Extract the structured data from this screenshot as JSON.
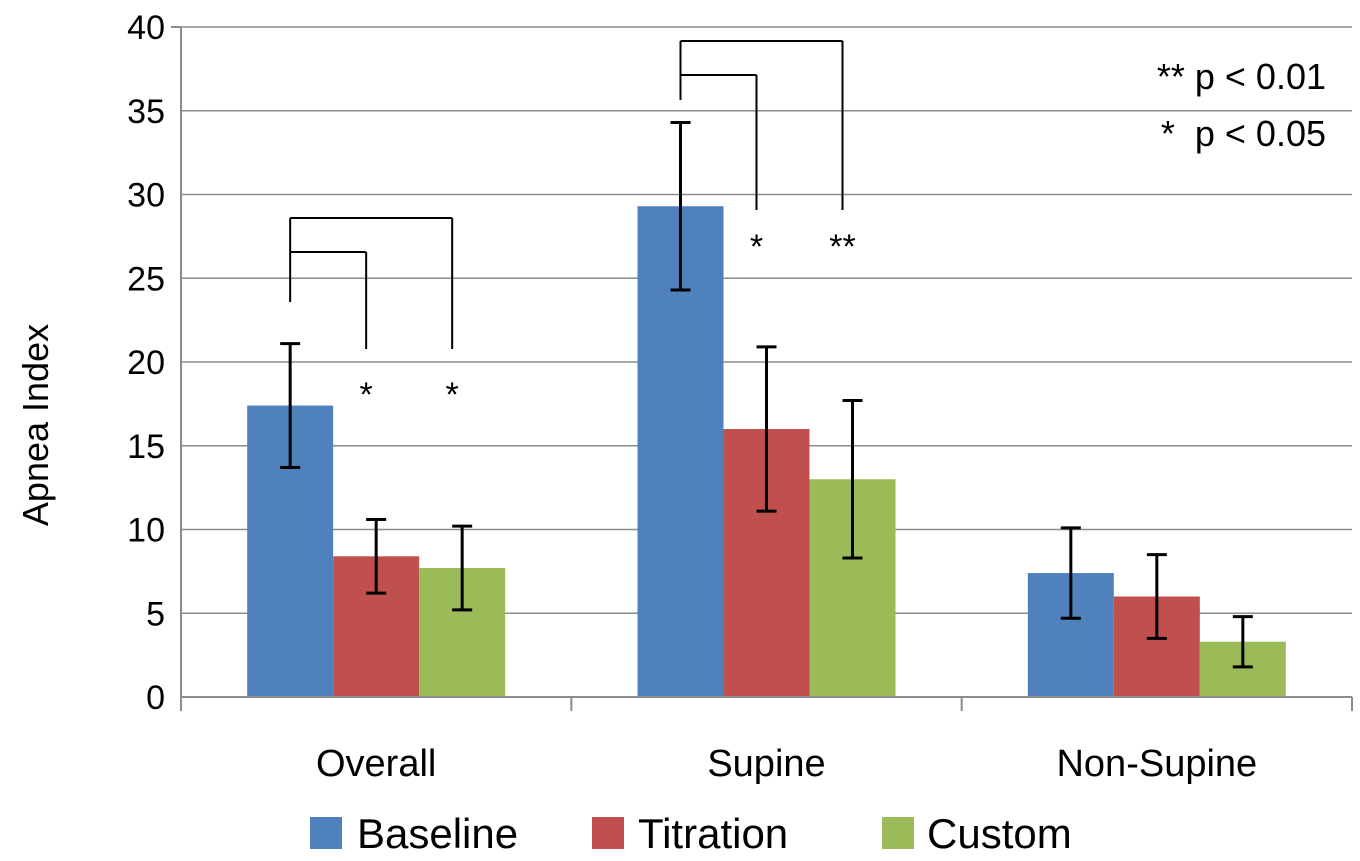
{
  "chart_data": {
    "type": "bar",
    "ylabel": "Apnea Index",
    "ylim": [
      0,
      40
    ],
    "yticks": [
      0,
      5,
      10,
      15,
      20,
      25,
      30,
      35,
      40
    ],
    "grid": true,
    "categories": [
      "Overall",
      "Supine",
      "Non-Supine"
    ],
    "series": [
      {
        "name": "Baseline",
        "color": "#4F81BD",
        "values": [
          17.4,
          29.3,
          7.4
        ],
        "errors": [
          3.7,
          5.0,
          2.7
        ]
      },
      {
        "name": "Titration",
        "color": "#C0504D",
        "values": [
          8.4,
          16.0,
          6.0
        ],
        "errors": [
          2.2,
          4.9,
          2.5
        ]
      },
      {
        "name": "Custom",
        "color": "#9BBB59",
        "values": [
          7.7,
          13.0,
          3.3
        ],
        "errors": [
          2.5,
          4.7,
          1.5
        ]
      }
    ],
    "legend_position": "bottom",
    "significance_legend": [
      "** p < 0.01",
      "*  p < 0.05"
    ],
    "annotations": [
      {
        "category": 0,
        "from_series": 0,
        "to_series": 1,
        "label": "*"
      },
      {
        "category": 0,
        "from_series": 0,
        "to_series": 2,
        "label": "*"
      },
      {
        "category": 1,
        "from_series": 0,
        "to_series": 1,
        "label": "*"
      },
      {
        "category": 1,
        "from_series": 0,
        "to_series": 2,
        "label": "**"
      }
    ]
  }
}
